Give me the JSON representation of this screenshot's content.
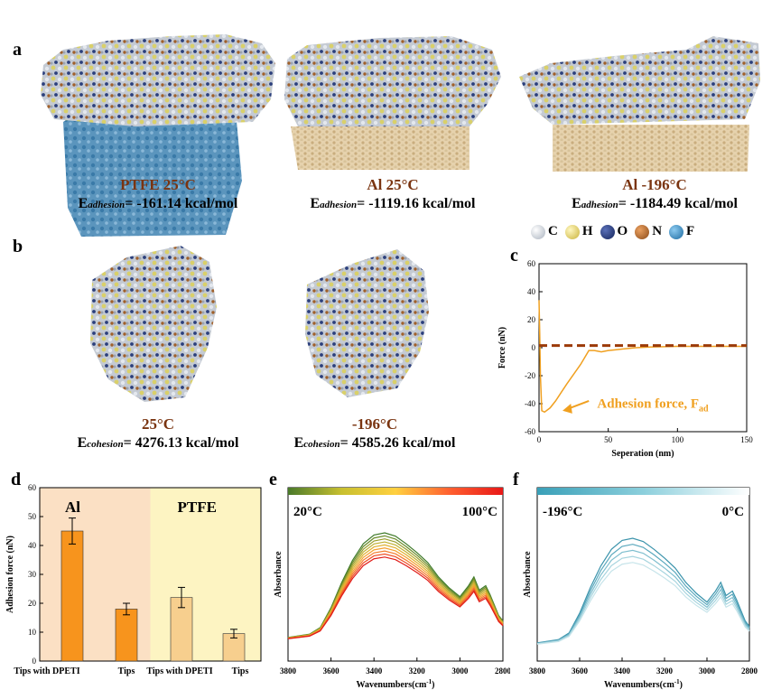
{
  "panels": {
    "a": "a",
    "b": "b",
    "c": "c",
    "d": "d",
    "e": "e",
    "f": "f"
  },
  "panel_a": {
    "items": [
      {
        "title": "PTFE 25°C",
        "eq_prefix": "E",
        "eq_sub": "adhesion",
        "eq_value": "= -161.14 kcal/mol"
      },
      {
        "title": "Al 25°C",
        "eq_prefix": "E",
        "eq_sub": "adhesion",
        "eq_value": "= -1119.16 kcal/mol"
      },
      {
        "title": "Al -196°C",
        "eq_prefix": "E",
        "eq_sub": "adhesion",
        "eq_value": "= -1184.49 kcal/mol"
      }
    ]
  },
  "legend": {
    "items": [
      {
        "label": "C",
        "color": "#d7dde6"
      },
      {
        "label": "H",
        "color": "#e6d77a"
      },
      {
        "label": "O",
        "color": "#233a78"
      },
      {
        "label": "N",
        "color": "#b86a2a"
      },
      {
        "label": "F",
        "color": "#3a8ec6"
      }
    ]
  },
  "panel_b": {
    "items": [
      {
        "title": "25°C",
        "eq_prefix": "E",
        "eq_sub": "cohesion",
        "eq_value": "= 4276.13 kcal/mol"
      },
      {
        "title": "-196°C",
        "eq_prefix": "E",
        "eq_sub": "cohesion",
        "eq_value": "= 4585.26 kcal/mol"
      }
    ]
  },
  "chart_data": [
    {
      "id": "c",
      "type": "line",
      "xlabel": "Seperation (nm)",
      "ylabel": "Force (nN)",
      "xlim": [
        0,
        150
      ],
      "ylim": [
        -60,
        60
      ],
      "xticks": [
        "0",
        "50",
        "100",
        "150"
      ],
      "yticks": [
        "60",
        "40",
        "20",
        "0",
        "-20",
        "-40",
        "-60"
      ],
      "annotation": {
        "text": "Adhesion force, F",
        "sub": "ad"
      },
      "series": [
        {
          "values": [
            [
              0,
              34
            ],
            [
              0.5,
              10
            ],
            [
              1,
              -20
            ],
            [
              2,
              -45
            ],
            [
              4,
              -46
            ],
            [
              8,
              -43
            ],
            [
              12,
              -38
            ],
            [
              16,
              -32
            ],
            [
              20,
              -26
            ],
            [
              25,
              -19
            ],
            [
              30,
              -12
            ],
            [
              33,
              -7
            ],
            [
              36,
              -2
            ],
            [
              40,
              -2
            ],
            [
              45,
              -3
            ],
            [
              50,
              -2
            ],
            [
              55,
              -1.5
            ],
            [
              60,
              -1
            ],
            [
              70,
              0
            ],
            [
              80,
              0.5
            ],
            [
              100,
              1
            ],
            [
              120,
              1
            ],
            [
              150,
              1
            ]
          ],
          "color": "#f0a020",
          "style": "solid"
        },
        {
          "values": [
            [
              0,
              1.5
            ],
            [
              150,
              1.5
            ]
          ],
          "color": "#9b3a08",
          "style": "dashed"
        }
      ]
    },
    {
      "id": "d",
      "type": "bar",
      "ylabel": "Adhesion force (nN)",
      "ylim": [
        0,
        60
      ],
      "yticks": [
        "0",
        "10",
        "20",
        "30",
        "40",
        "50",
        "60"
      ],
      "groups": [
        {
          "label": "Al",
          "bg": "#fbe0c4"
        },
        {
          "label": "PTFE",
          "bg": "#fdf4c2"
        }
      ],
      "categories": [
        "Tips with DPETI",
        "Tips",
        "Tips with DPETI",
        "Tips"
      ],
      "values": [
        45,
        18,
        22,
        9.5
      ],
      "errors": [
        4.5,
        2,
        3.5,
        1.5
      ],
      "colors": [
        "#f7941d",
        "#f7941d",
        "#f7cf8e",
        "#f7cf8e"
      ]
    },
    {
      "id": "e",
      "type": "line",
      "xlabel": "Wavenumbers(cm",
      "xlabel_sup": "-1",
      "ylabel": "Absorbance",
      "xlim": [
        3800,
        2800
      ],
      "xticks": [
        "3800",
        "3600",
        "3400",
        "3200",
        "3000",
        "2800"
      ],
      "colorbar": {
        "left": "20°C",
        "right": "100°C",
        "stops": [
          "#4a7a2a",
          "#c8c030",
          "#ffd040",
          "#ff6030",
          "#e81818"
        ]
      },
      "series_count": 9,
      "series_colors": [
        "#3f7a2a",
        "#6a8c2a",
        "#9a9e2c",
        "#c0b030",
        "#e0b030",
        "#f4a030",
        "#f47c2c",
        "#ee4e24",
        "#e01c18"
      ]
    },
    {
      "id": "f",
      "type": "line",
      "xlabel": "Wavenumbers(cm",
      "xlabel_sup": "-1",
      "ylabel": "Absorbance",
      "xlim": [
        3800,
        2800
      ],
      "xticks": [
        "3800",
        "3600",
        "3400",
        "3200",
        "3000",
        "2800"
      ],
      "colorbar": {
        "left": "-196°C",
        "right": "0°C",
        "stops": [
          "#3aa0b8",
          "#8ccfdc",
          "#ffffff"
        ]
      },
      "series_count": 5,
      "series_colors": [
        "#3a93ab",
        "#5aa8bd",
        "#80bfcf",
        "#a6d4de",
        "#c6e4ea"
      ]
    }
  ]
}
